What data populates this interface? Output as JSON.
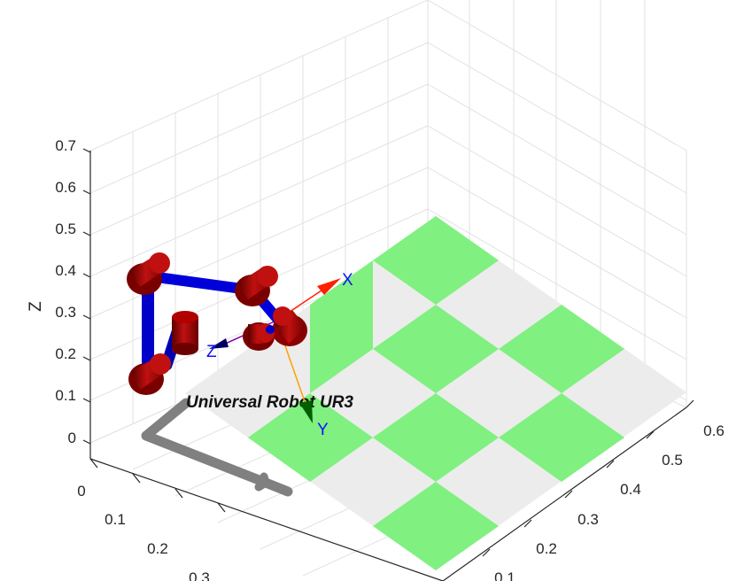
{
  "figure": {
    "z_axis_label": "Z",
    "robot_name": "Universal Robot UR3",
    "frame_axes": {
      "x": "X",
      "y": "Y",
      "z": "Z"
    },
    "z_ticks": [
      "0.7",
      "0.6",
      "0.5",
      "0.4",
      "0.3",
      "0.2",
      "0.1",
      "0"
    ],
    "left_axis_ticks": [
      "0",
      "0.1",
      "0.2",
      "0.3"
    ],
    "right_axis_ticks": [
      "0.1",
      "0.2",
      "0.3",
      "0.4",
      "0.5",
      "0.6"
    ],
    "colors": {
      "checker_green": "#80f080",
      "checker_light": "#ececec",
      "joint_red": "#a00000",
      "link_blue": "#0000c8",
      "shadow_gray": "#808080",
      "frame_x": "#ff2000",
      "frame_y": "#ffa000",
      "frame_z": "#8000a0",
      "grid": "#e2e2e2"
    }
  }
}
